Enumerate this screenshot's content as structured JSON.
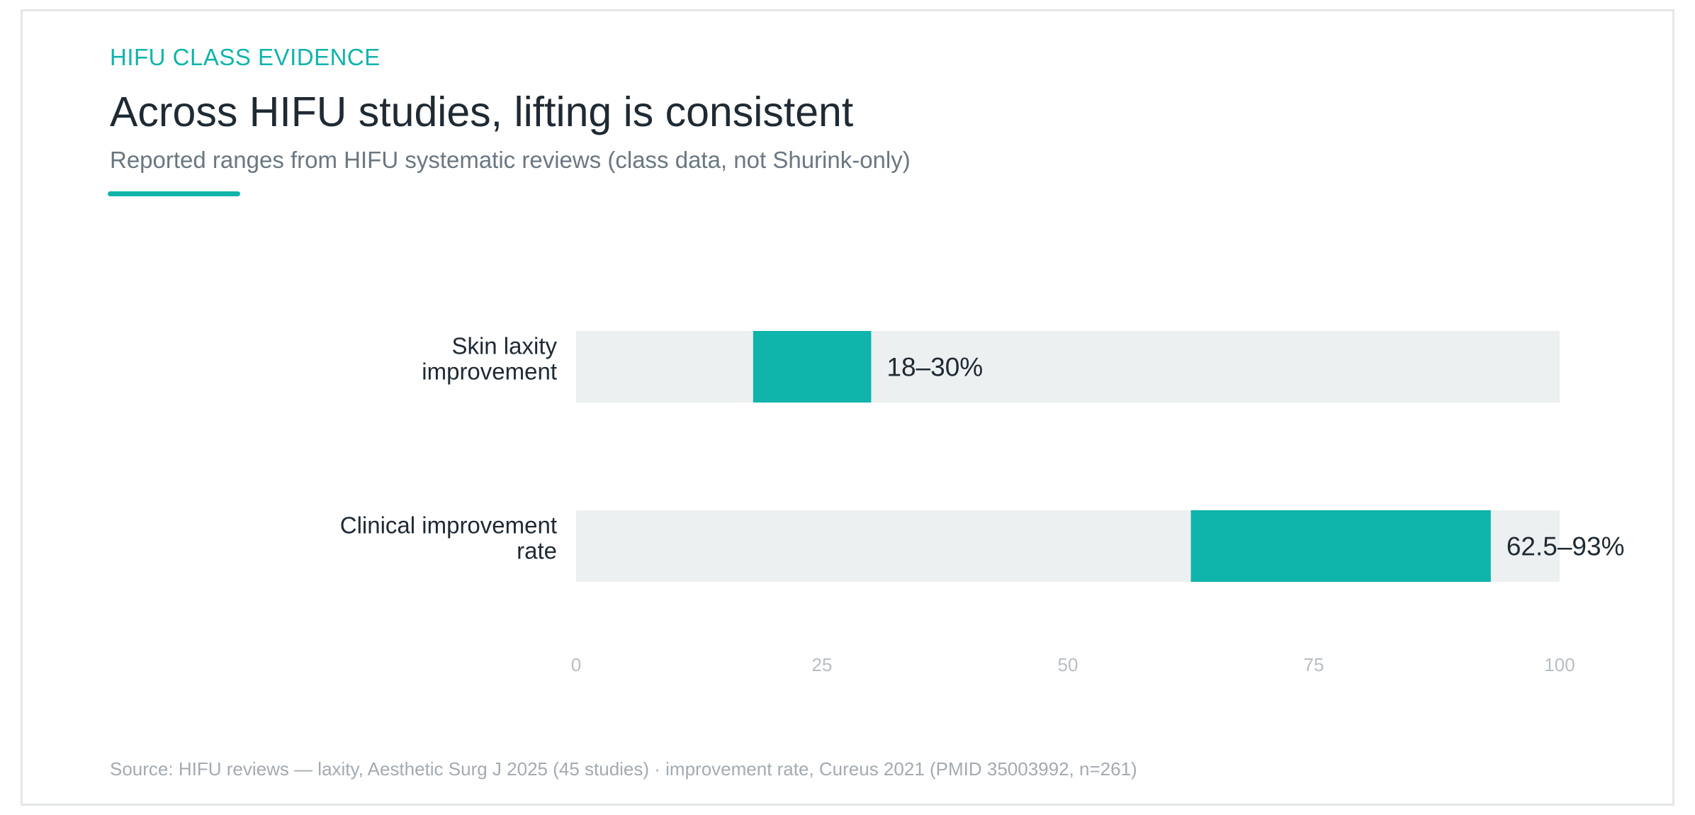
{
  "header": {
    "eyebrow": "HIFU CLASS EVIDENCE",
    "title": "Across HIFU studies, lifting is consistent",
    "subtitle": "Reported ranges from HIFU systematic reviews (class data, not Shurink-only)"
  },
  "colors": {
    "accent": "#0fb4ab",
    "track": "#edf0f1",
    "text": "#1f2a33",
    "muted": "#6b7780",
    "tick": "#b7bec3"
  },
  "chart_data": {
    "type": "bar",
    "orientation": "horizontal-range",
    "categories": [
      [
        "Skin laxity",
        "improvement"
      ],
      [
        "Clinical improvement",
        "rate"
      ]
    ],
    "ranges": [
      {
        "low": 18,
        "high": 30,
        "label": "18–30%"
      },
      {
        "low": 62.5,
        "high": 93,
        "label": "62.5–93%"
      }
    ],
    "xlim": [
      0,
      100
    ],
    "xticks": [
      "0",
      "25",
      "50",
      "75",
      "100"
    ],
    "xtick_values": [
      0,
      25,
      50,
      75,
      100
    ],
    "grid": false,
    "legend": "none"
  },
  "footer": {
    "source": "Source: HIFU reviews — laxity, Aesthetic Surg J 2025 (45 studies) · improvement rate, Cureus 2021 (PMID 35003992, n=261)"
  }
}
